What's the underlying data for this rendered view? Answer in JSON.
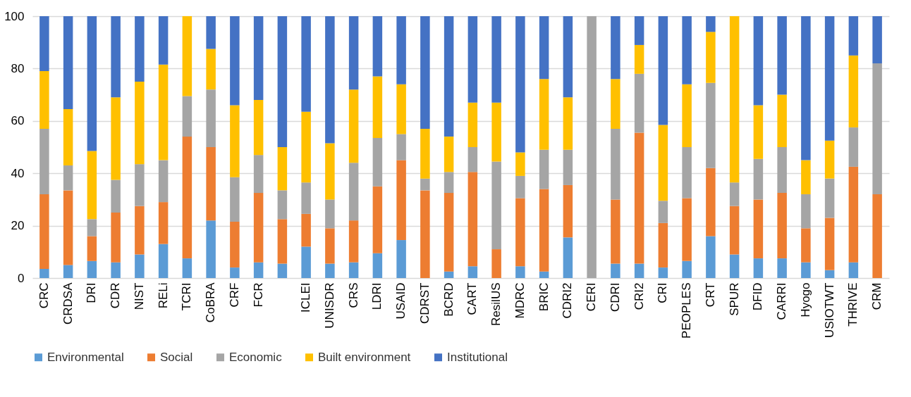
{
  "chart_data": {
    "type": "bar",
    "stacked": true,
    "grid": "y",
    "legend": "bottom",
    "ylim": [
      0,
      100
    ],
    "yticks": [
      0,
      20,
      40,
      60,
      80,
      100
    ],
    "categories": [
      "CRC",
      "CRDSA",
      "DRI",
      "CDR",
      "NIST",
      "RELi",
      "TCRI",
      "CoBRA",
      "CRF",
      "FCR",
      null,
      "ICLEI",
      "UNISDR",
      "CRS",
      "LDRI",
      "USAID",
      "CDRST",
      "BCRD",
      "CART",
      "ResilUS",
      "MDRC",
      "BRIC",
      "CDRI2",
      "CERI",
      "CDRI",
      "CRI2",
      "CRI",
      "PEOPLES",
      "CRT",
      "SPUR",
      "DFID",
      "CARRI",
      "Hyogo",
      "USIOTWT",
      "THRIVE",
      "CRM"
    ],
    "series": [
      {
        "name": "Environmental",
        "color": "#5b9bd5",
        "values": [
          3.5,
          5,
          6.5,
          6,
          9,
          13,
          7.5,
          22,
          4,
          6,
          5.5,
          12,
          5.5,
          6,
          9.5,
          14.5,
          0,
          2.5,
          4.5,
          0,
          4.5,
          2.5,
          15.5,
          0,
          5.5,
          5.5,
          4,
          6.5,
          16,
          9,
          7.5,
          7.5,
          6,
          3,
          6,
          0
        ]
      },
      {
        "name": "Social",
        "color": "#ed7d31",
        "values": [
          28.5,
          28.5,
          9.5,
          19,
          18.5,
          16,
          46.5,
          28,
          17.5,
          26.5,
          17,
          12.5,
          13.5,
          16,
          25.5,
          30.5,
          33.5,
          30,
          36,
          11,
          26,
          31.5,
          20,
          0,
          24.5,
          50,
          17,
          24,
          26,
          18.5,
          22.5,
          25,
          13,
          20,
          36.5,
          32
        ]
      },
      {
        "name": "Economic",
        "color": "#a5a5a5",
        "values": [
          25,
          9.5,
          6.5,
          12.5,
          16,
          16,
          15.5,
          22,
          17,
          14.5,
          11,
          12,
          11,
          22,
          18.5,
          10,
          4.5,
          8,
          9.5,
          33.5,
          8.5,
          15,
          13.5,
          100,
          27,
          22.5,
          8.5,
          19.5,
          32.5,
          9,
          15.5,
          17.5,
          13,
          15,
          15,
          50
        ]
      },
      {
        "name": "Built environment",
        "color": "#ffc000",
        "values": [
          22,
          21.5,
          26,
          31.5,
          31.5,
          36.5,
          30.5,
          15.5,
          27.5,
          21,
          16.5,
          27,
          21.5,
          28,
          23.5,
          19,
          19,
          13.5,
          17,
          22.5,
          9,
          27,
          20,
          0,
          19,
          11,
          29,
          24,
          19.5,
          63.5,
          20.5,
          20,
          13,
          14.5,
          27.5,
          0
        ]
      },
      {
        "name": "Institutional",
        "color": "#4472c4",
        "values": [
          21,
          35.5,
          51.5,
          31,
          25,
          18.5,
          0,
          12.5,
          34,
          32,
          50,
          36.5,
          48.5,
          28,
          23,
          26,
          43,
          46,
          33,
          33,
          52,
          24,
          31,
          0,
          24,
          11,
          41.5,
          26,
          6,
          0,
          34,
          30,
          55,
          47.5,
          15,
          18
        ]
      }
    ]
  }
}
